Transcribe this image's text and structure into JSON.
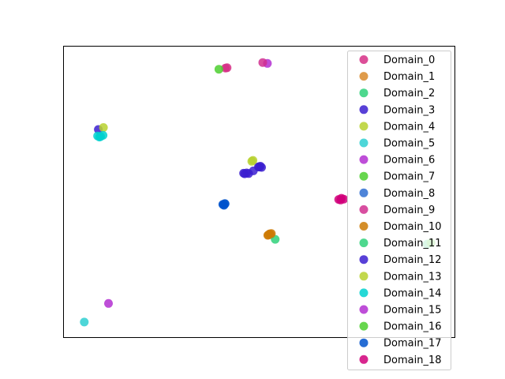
{
  "chart_data": {
    "type": "scatter",
    "title": "",
    "xlabel": "",
    "ylabel": "",
    "axes_visible": false,
    "grid": false,
    "legend_placement": "upper right",
    "xlim": [
      0,
      100
    ],
    "ylim": [
      0,
      100
    ],
    "series": [
      {
        "name": "Domain_0",
        "color": "#d62f86",
        "points": [
          [
            41.4,
            92.5
          ],
          [
            41.8,
            92.6
          ]
        ]
      },
      {
        "name": "Domain_1",
        "color": "#d98a2b",
        "points": [
          [
            52.3,
            35.2
          ],
          [
            52.7,
            35.6
          ],
          [
            52.9,
            35.3
          ]
        ]
      },
      {
        "name": "Domain_2",
        "color": "#2fd17a",
        "points": [
          [
            54.1,
            33.7
          ]
        ]
      },
      {
        "name": "Domain_3",
        "color": "#3b1fd0",
        "points": [
          [
            46.3,
            56.2
          ],
          [
            46.8,
            56.5
          ],
          [
            47.3,
            56.3
          ],
          [
            48.5,
            57.2
          ],
          [
            49.8,
            58.6
          ],
          [
            50.3,
            58.8
          ],
          [
            50.6,
            58.4
          ]
        ]
      },
      {
        "name": "Domain_4",
        "color": "#b7d12f",
        "points": [
          [
            48.4,
            60.8
          ]
        ]
      },
      {
        "name": "Domain_5",
        "color": "#2fcfd1",
        "points": [
          [
            5.3,
            5.3
          ]
        ]
      },
      {
        "name": "Domain_6",
        "color": "#b32fd1",
        "points": [
          [
            52.1,
            94.1
          ]
        ]
      },
      {
        "name": "Domain_7",
        "color": "#4ccf2f",
        "points": [
          [
            39.7,
            92.1
          ]
        ]
      },
      {
        "name": "Domain_8",
        "color": "#2f6fd1",
        "points": [
          [
            40.8,
            45.6
          ],
          [
            41.2,
            46.0
          ]
        ]
      },
      {
        "name": "Domain_9",
        "color": "#d12f8f",
        "points": [
          [
            50.9,
            94.4
          ]
        ]
      },
      {
        "name": "Domain_10",
        "color": "#cc7a05",
        "points": [
          [
            52.6,
            35.5
          ],
          [
            52.2,
            35.1
          ],
          [
            53.1,
            35.7
          ]
        ]
      },
      {
        "name": "Domain_11",
        "color": "#2fd17a",
        "points": [
          [
            92.9,
            32.1
          ]
        ]
      },
      {
        "name": "Domain_12",
        "color": "#3b1fd0",
        "points": [
          [
            8.9,
            71.4
          ],
          [
            46.0,
            56.4
          ],
          [
            50.0,
            58.5
          ]
        ]
      },
      {
        "name": "Domain_13",
        "color": "#b7d12f",
        "points": [
          [
            10.2,
            72.1
          ],
          [
            48.1,
            60.5
          ]
        ]
      },
      {
        "name": "Domain_14",
        "color": "#00d1cf",
        "points": [
          [
            8.7,
            69.2
          ],
          [
            9.5,
            69.0
          ],
          [
            10.1,
            69.4
          ],
          [
            9.2,
            68.8
          ]
        ]
      },
      {
        "name": "Domain_15",
        "color": "#b32fd1",
        "points": [
          [
            11.5,
            11.7
          ]
        ]
      },
      {
        "name": "Domain_16",
        "color": "#4ccf2f",
        "points": [
          [
            93.9,
            32.5
          ]
        ]
      },
      {
        "name": "Domain_17",
        "color": "#0054cc",
        "points": [
          [
            40.7,
            45.7
          ],
          [
            41.3,
            45.9
          ],
          [
            41.0,
            45.4
          ]
        ]
      },
      {
        "name": "Domain_18",
        "color": "#d1007a",
        "points": [
          [
            70.3,
            47.4
          ],
          [
            71.0,
            47.8
          ],
          [
            71.6,
            47.5
          ],
          [
            70.8,
            47.2
          ]
        ]
      }
    ]
  }
}
